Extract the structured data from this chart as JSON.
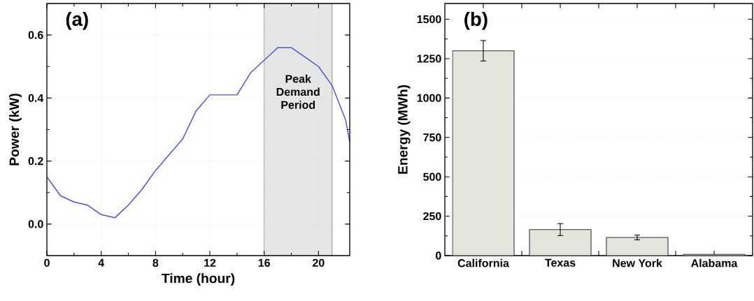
{
  "chart_data": [
    {
      "type": "line",
      "xlabel": "Time (hour)",
      "ylabel": "Power (kW)",
      "annotations": [
        "(a)"
      ],
      "x": [
        0,
        1,
        2,
        3,
        4,
        5,
        6,
        7,
        8,
        9,
        10,
        11,
        12,
        13,
        14,
        15,
        16,
        17,
        18,
        19,
        20,
        21,
        22,
        22.3
      ],
      "series": [
        {
          "color": "#4f4fe6",
          "values": [
            0.15,
            0.09,
            0.07,
            0.06,
            0.03,
            0.02,
            0.06,
            0.11,
            0.17,
            0.22,
            0.27,
            0.36,
            0.41,
            0.41,
            0.41,
            0.48,
            0.52,
            0.56,
            0.56,
            0.53,
            0.5,
            0.44,
            0.33,
            0.26
          ]
        }
      ],
      "xlim": [
        0,
        22.3
      ],
      "xticks": [
        0,
        4,
        8,
        12,
        16,
        20
      ],
      "ylim": [
        -0.1,
        0.7
      ],
      "yticks": [
        {
          "value": 0,
          "label": "0.0"
        },
        {
          "value": 0.2,
          "label": "0.2"
        },
        {
          "value": 0.4,
          "label": "0.4"
        },
        {
          "value": 0.6,
          "label": "0.6"
        }
      ],
      "bands": [
        {
          "axis": "x",
          "from": 16,
          "to": 21,
          "label": "Peak Demand Period",
          "color": "#e6e6e6"
        }
      ],
      "ref_lines": [
        {
          "axis": "x",
          "value": 16,
          "color": "#808080",
          "line_style": "dotted"
        },
        {
          "axis": "x",
          "value": 21,
          "color": "#a6a6a6",
          "line_style": "solid"
        }
      ],
      "grid": true,
      "line_style": "solid",
      "marker": "none"
    },
    {
      "type": "bar",
      "ylabel": "Energy (MWh)",
      "annotations": [
        "(b)"
      ],
      "categories": [
        "California",
        "Texas",
        "New York",
        "Alabama"
      ],
      "values": [
        1300,
        165,
        115,
        8
      ],
      "errors": [
        65,
        38,
        15,
        null
      ],
      "color": "#e4e4dc",
      "ylim": [
        0,
        1600
      ],
      "yticks": [
        0,
        250,
        500,
        750,
        1000,
        1250,
        1500
      ],
      "grid": "y"
    }
  ]
}
